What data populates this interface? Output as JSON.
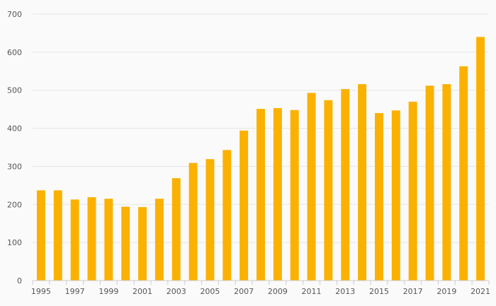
{
  "chart_data": {
    "type": "bar",
    "title": "",
    "xlabel": "",
    "ylabel": "",
    "categories": [
      "1995",
      "1996",
      "1997",
      "1998",
      "1999",
      "2000",
      "2001",
      "2002",
      "2003",
      "2004",
      "2005",
      "2006",
      "2007",
      "2008",
      "2009",
      "2010",
      "2011",
      "2012",
      "2013",
      "2014",
      "2015",
      "2016",
      "2017",
      "2018",
      "2019",
      "2020",
      "2021"
    ],
    "values": [
      237,
      237,
      213,
      219,
      215,
      194,
      193,
      215,
      269,
      309,
      319,
      343,
      394,
      451,
      453,
      448,
      493,
      474,
      503,
      516,
      440,
      447,
      470,
      512,
      516,
      563,
      640
    ],
    "x_tick_labels": [
      "1995",
      "1997",
      "1999",
      "2001",
      "2003",
      "2005",
      "2007",
      "2009",
      "2011",
      "2013",
      "2015",
      "2017",
      "2019",
      "2021"
    ],
    "y_ticks": [
      0,
      100,
      200,
      300,
      400,
      500,
      600,
      700
    ],
    "ylim": [
      0,
      700
    ],
    "grid": true,
    "legend": "none",
    "bar_color": "#fbb100",
    "grid_color": "#e6e6e6",
    "background_color": "#fafafa"
  }
}
